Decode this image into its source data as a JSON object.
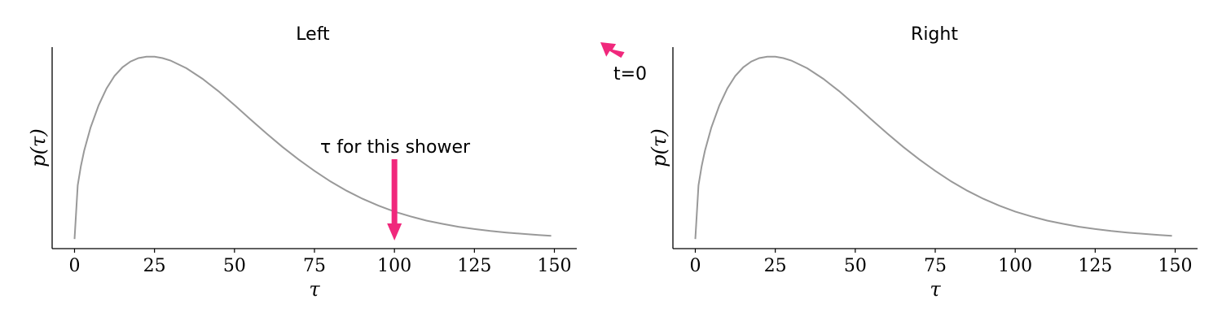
{
  "accent_color": "#f0287c",
  "curve_color": "#999999",
  "corner_annotation": "t=0",
  "chart_data": [
    {
      "type": "line",
      "title": "Left",
      "xlabel": "τ",
      "ylabel": "p(τ)",
      "xlim": [
        -7,
        157
      ],
      "ylim": [
        0,
        1.05
      ],
      "xticks": [
        0,
        25,
        50,
        75,
        100,
        125,
        150
      ],
      "yticks_shown": false,
      "series": [
        {
          "x": [
            0,
            1,
            2,
            3,
            5,
            7.5,
            10,
            12.5,
            15,
            17.5,
            20,
            22.5,
            25,
            27.5,
            30,
            35,
            40,
            45,
            50,
            55,
            60,
            65,
            70,
            75,
            80,
            85,
            90,
            95,
            100,
            105,
            110,
            115,
            120,
            125,
            130,
            135,
            140,
            145,
            149
          ],
          "y": [
            0.05,
            0.33,
            0.43,
            0.51,
            0.63,
            0.745,
            0.835,
            0.9,
            0.945,
            0.975,
            0.993,
            1.0,
            1.0,
            0.993,
            0.98,
            0.94,
            0.885,
            0.82,
            0.748,
            0.673,
            0.6,
            0.53,
            0.465,
            0.405,
            0.35,
            0.302,
            0.26,
            0.224,
            0.193,
            0.168,
            0.146,
            0.129,
            0.114,
            0.102,
            0.092,
            0.084,
            0.077,
            0.071,
            0.067
          ]
        }
      ],
      "annotation": {
        "text": "τ for this shower",
        "x": 100
      }
    },
    {
      "type": "line",
      "title": "Right",
      "xlabel": "τ",
      "ylabel": "p(τ)",
      "xlim": [
        -7,
        157
      ],
      "ylim": [
        0,
        1.05
      ],
      "xticks": [
        0,
        25,
        50,
        75,
        100,
        125,
        150
      ],
      "yticks_shown": false,
      "series": [
        {
          "x": [
            0,
            1,
            2,
            3,
            5,
            7.5,
            10,
            12.5,
            15,
            17.5,
            20,
            22.5,
            25,
            27.5,
            30,
            35,
            40,
            45,
            50,
            55,
            60,
            65,
            70,
            75,
            80,
            85,
            90,
            95,
            100,
            105,
            110,
            115,
            120,
            125,
            130,
            135,
            140,
            145,
            149
          ],
          "y": [
            0.05,
            0.33,
            0.43,
            0.51,
            0.63,
            0.745,
            0.835,
            0.9,
            0.945,
            0.975,
            0.993,
            1.0,
            1.0,
            0.993,
            0.98,
            0.94,
            0.885,
            0.82,
            0.748,
            0.673,
            0.6,
            0.53,
            0.465,
            0.405,
            0.35,
            0.302,
            0.26,
            0.224,
            0.193,
            0.168,
            0.146,
            0.129,
            0.114,
            0.102,
            0.092,
            0.084,
            0.077,
            0.071,
            0.067
          ]
        }
      ]
    }
  ]
}
